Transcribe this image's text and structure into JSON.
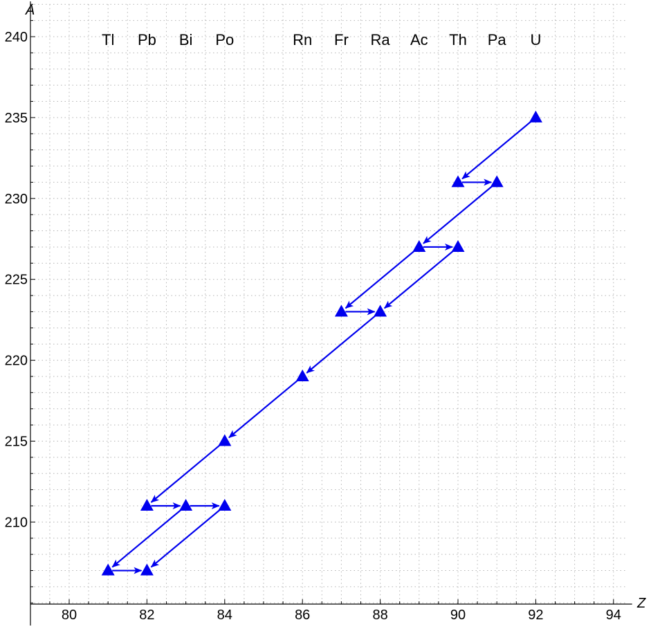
{
  "chart_data": {
    "type": "scatter",
    "title": "",
    "xlabel": "Z",
    "ylabel": "A",
    "xlim": [
      79.3,
      94.3
    ],
    "ylim": [
      204.5,
      242
    ],
    "x_ticks": [
      80,
      82,
      84,
      86,
      88,
      90,
      92,
      94
    ],
    "x_minor_step": 0.5,
    "y_ticks": [
      210,
      215,
      220,
      225,
      230,
      235,
      240
    ],
    "y_minor_step": 1,
    "grid": true,
    "marker": "triangle",
    "color": "#0000ee",
    "element_labels": [
      {
        "z": 81,
        "symbol": "Tl"
      },
      {
        "z": 82,
        "symbol": "Pb"
      },
      {
        "z": 83,
        "symbol": "Bi"
      },
      {
        "z": 84,
        "symbol": "Po"
      },
      {
        "z": 86,
        "symbol": "Rn"
      },
      {
        "z": 87,
        "symbol": "Fr"
      },
      {
        "z": 88,
        "symbol": "Ra"
      },
      {
        "z": 89,
        "symbol": "Ac"
      },
      {
        "z": 90,
        "symbol": "Th"
      },
      {
        "z": 91,
        "symbol": "Pa"
      },
      {
        "z": 92,
        "symbol": "U"
      }
    ],
    "points": [
      {
        "z": 92,
        "a": 235
      },
      {
        "z": 90,
        "a": 231
      },
      {
        "z": 91,
        "a": 231
      },
      {
        "z": 89,
        "a": 227
      },
      {
        "z": 90,
        "a": 227
      },
      {
        "z": 87,
        "a": 223
      },
      {
        "z": 88,
        "a": 223
      },
      {
        "z": 86,
        "a": 219
      },
      {
        "z": 84,
        "a": 215
      },
      {
        "z": 82,
        "a": 211
      },
      {
        "z": 83,
        "a": 211
      },
      {
        "z": 84,
        "a": 211
      },
      {
        "z": 81,
        "a": 207
      },
      {
        "z": 82,
        "a": 207
      }
    ],
    "transitions": [
      {
        "from": [
          92,
          235
        ],
        "to": [
          90,
          231
        ]
      },
      {
        "from": [
          90,
          231
        ],
        "to": [
          91,
          231
        ]
      },
      {
        "from": [
          91,
          231
        ],
        "to": [
          89,
          227
        ]
      },
      {
        "from": [
          89,
          227
        ],
        "to": [
          90,
          227
        ]
      },
      {
        "from": [
          89,
          227
        ],
        "to": [
          87,
          223
        ]
      },
      {
        "from": [
          87,
          223
        ],
        "to": [
          88,
          223
        ]
      },
      {
        "from": [
          90,
          227
        ],
        "to": [
          88,
          223
        ]
      },
      {
        "from": [
          88,
          223
        ],
        "to": [
          86,
          219
        ]
      },
      {
        "from": [
          86,
          219
        ],
        "to": [
          84,
          215
        ]
      },
      {
        "from": [
          84,
          215
        ],
        "to": [
          82,
          211
        ]
      },
      {
        "from": [
          82,
          211
        ],
        "to": [
          83,
          211
        ]
      },
      {
        "from": [
          83,
          211
        ],
        "to": [
          84,
          211
        ]
      },
      {
        "from": [
          83,
          211
        ],
        "to": [
          81,
          207
        ]
      },
      {
        "from": [
          81,
          207
        ],
        "to": [
          82,
          207
        ]
      },
      {
        "from": [
          84,
          211
        ],
        "to": [
          82,
          207
        ]
      }
    ]
  }
}
